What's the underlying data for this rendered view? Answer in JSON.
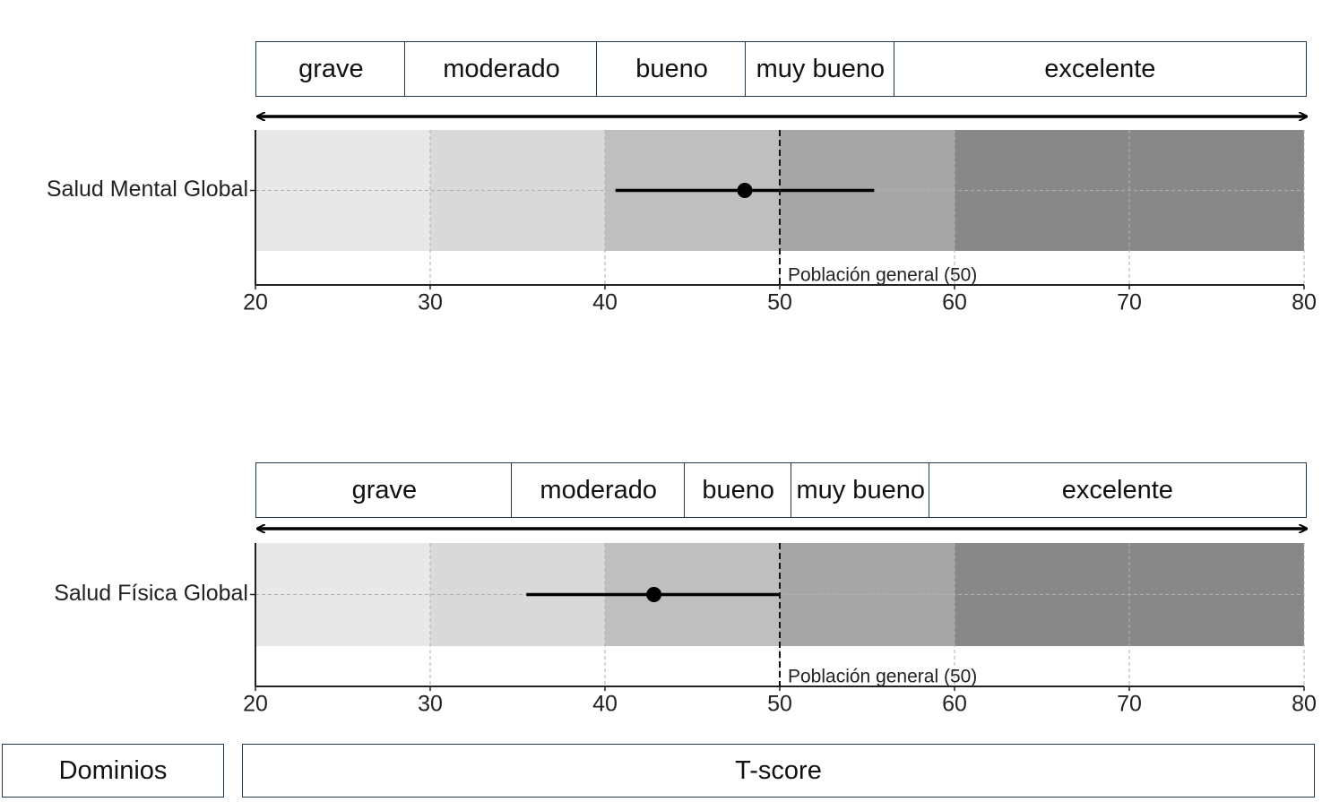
{
  "chart_data": [
    {
      "type": "errorbar",
      "categories": [
        "Salud Mental Global"
      ],
      "values": [
        48
      ],
      "lower": [
        40.6
      ],
      "upper": [
        55.4
      ],
      "xlim": [
        20,
        80
      ],
      "xticks": [
        20,
        30,
        40,
        50,
        60,
        70,
        80
      ],
      "grid": true,
      "ranges": [
        {
          "label": "grave",
          "from": 20,
          "to": 28.5
        },
        {
          "label": "moderado",
          "from": 28.5,
          "to": 39.5
        },
        {
          "label": "bueno",
          "from": 39.5,
          "to": 48
        },
        {
          "label": "muy bueno",
          "from": 48,
          "to": 56.5
        },
        {
          "label": "excelente",
          "from": 56.5,
          "to": 80
        }
      ],
      "bands": [
        {
          "from": 20,
          "to": 30,
          "color": "#e8e8e8"
        },
        {
          "from": 30,
          "to": 40,
          "color": "#d9d9d9"
        },
        {
          "from": 40,
          "to": 50,
          "color": "#bfbfbf"
        },
        {
          "from": 50,
          "to": 60,
          "color": "#a6a6a6"
        },
        {
          "from": 60,
          "to": 80,
          "color": "#888888"
        }
      ],
      "reference": {
        "value": 50,
        "label": "Población general (50)"
      },
      "color": "#000000"
    },
    {
      "type": "errorbar",
      "categories": [
        "Salud Física Global"
      ],
      "values": [
        42.8
      ],
      "lower": [
        35.5
      ],
      "upper": [
        50
      ],
      "xlim": [
        20,
        80
      ],
      "xticks": [
        20,
        30,
        40,
        50,
        60,
        70,
        80
      ],
      "grid": true,
      "ranges": [
        {
          "label": "grave",
          "from": 20,
          "to": 34.6
        },
        {
          "label": "moderado",
          "from": 34.6,
          "to": 44.5
        },
        {
          "label": "bueno",
          "from": 44.5,
          "to": 50.6
        },
        {
          "label": "muy bueno",
          "from": 50.6,
          "to": 58.5
        },
        {
          "label": "excelente",
          "from": 58.5,
          "to": 80
        }
      ],
      "bands": [
        {
          "from": 20,
          "to": 30,
          "color": "#e8e8e8"
        },
        {
          "from": 30,
          "to": 40,
          "color": "#d9d9d9"
        },
        {
          "from": 40,
          "to": 50,
          "color": "#bfbfbf"
        },
        {
          "from": 50,
          "to": 60,
          "color": "#a6a6a6"
        },
        {
          "from": 60,
          "to": 80,
          "color": "#888888"
        }
      ],
      "reference": {
        "value": 50,
        "label": "Población general (50)"
      },
      "color": "#000000"
    }
  ],
  "footer": {
    "left": "Dominios",
    "right": "T-score"
  }
}
